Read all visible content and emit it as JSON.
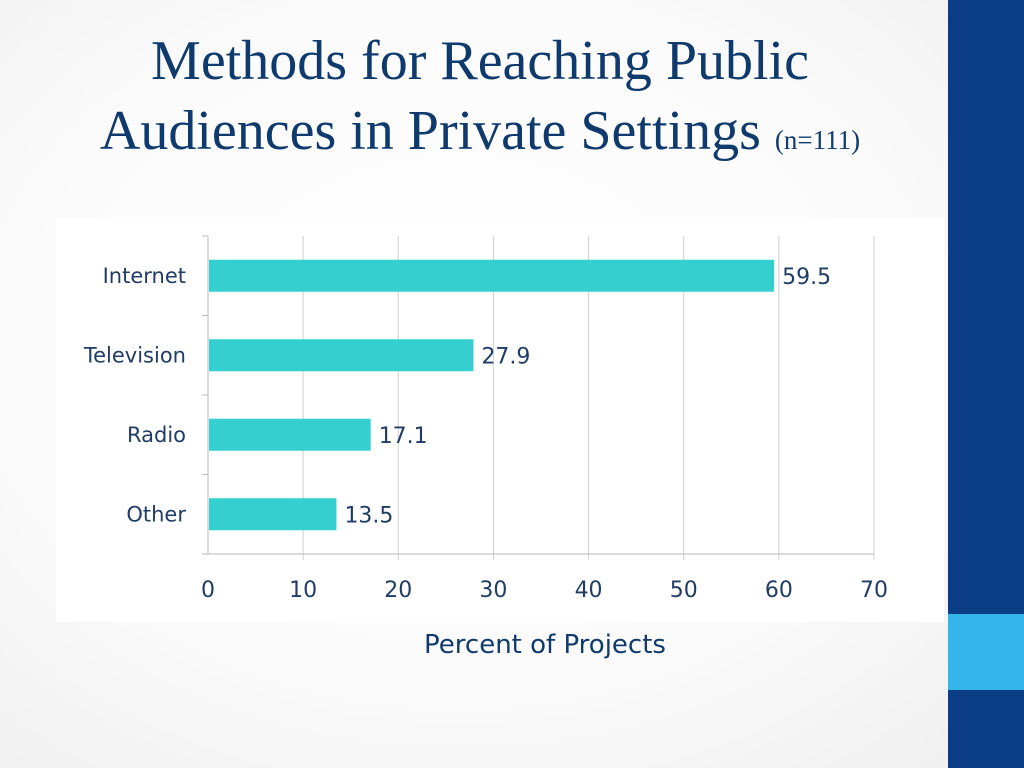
{
  "slide": {
    "title_line1": "Methods for Reaching Public",
    "title_line2": "Audiences in Private Settings",
    "title_suffix": "(n=111)",
    "colors": {
      "title": "#0f3a6e",
      "right_band": "#0a3d86",
      "right_accent": "#35b6ea"
    }
  },
  "chart_data": {
    "type": "bar",
    "orientation": "horizontal",
    "categories": [
      "Internet",
      "Television",
      "Radio",
      "Other"
    ],
    "values": [
      59.5,
      27.9,
      17.1,
      13.5
    ],
    "value_labels": [
      "59.5",
      "27.9",
      "17.1",
      "13.5"
    ],
    "xlabel": "Percent of Projects",
    "ylabel": "",
    "xlim": [
      0,
      70
    ],
    "xticks": [
      0,
      10,
      20,
      30,
      40,
      50,
      60,
      70
    ],
    "grid": "vertical",
    "legend": "none",
    "bar_color": "#36cfcf"
  }
}
